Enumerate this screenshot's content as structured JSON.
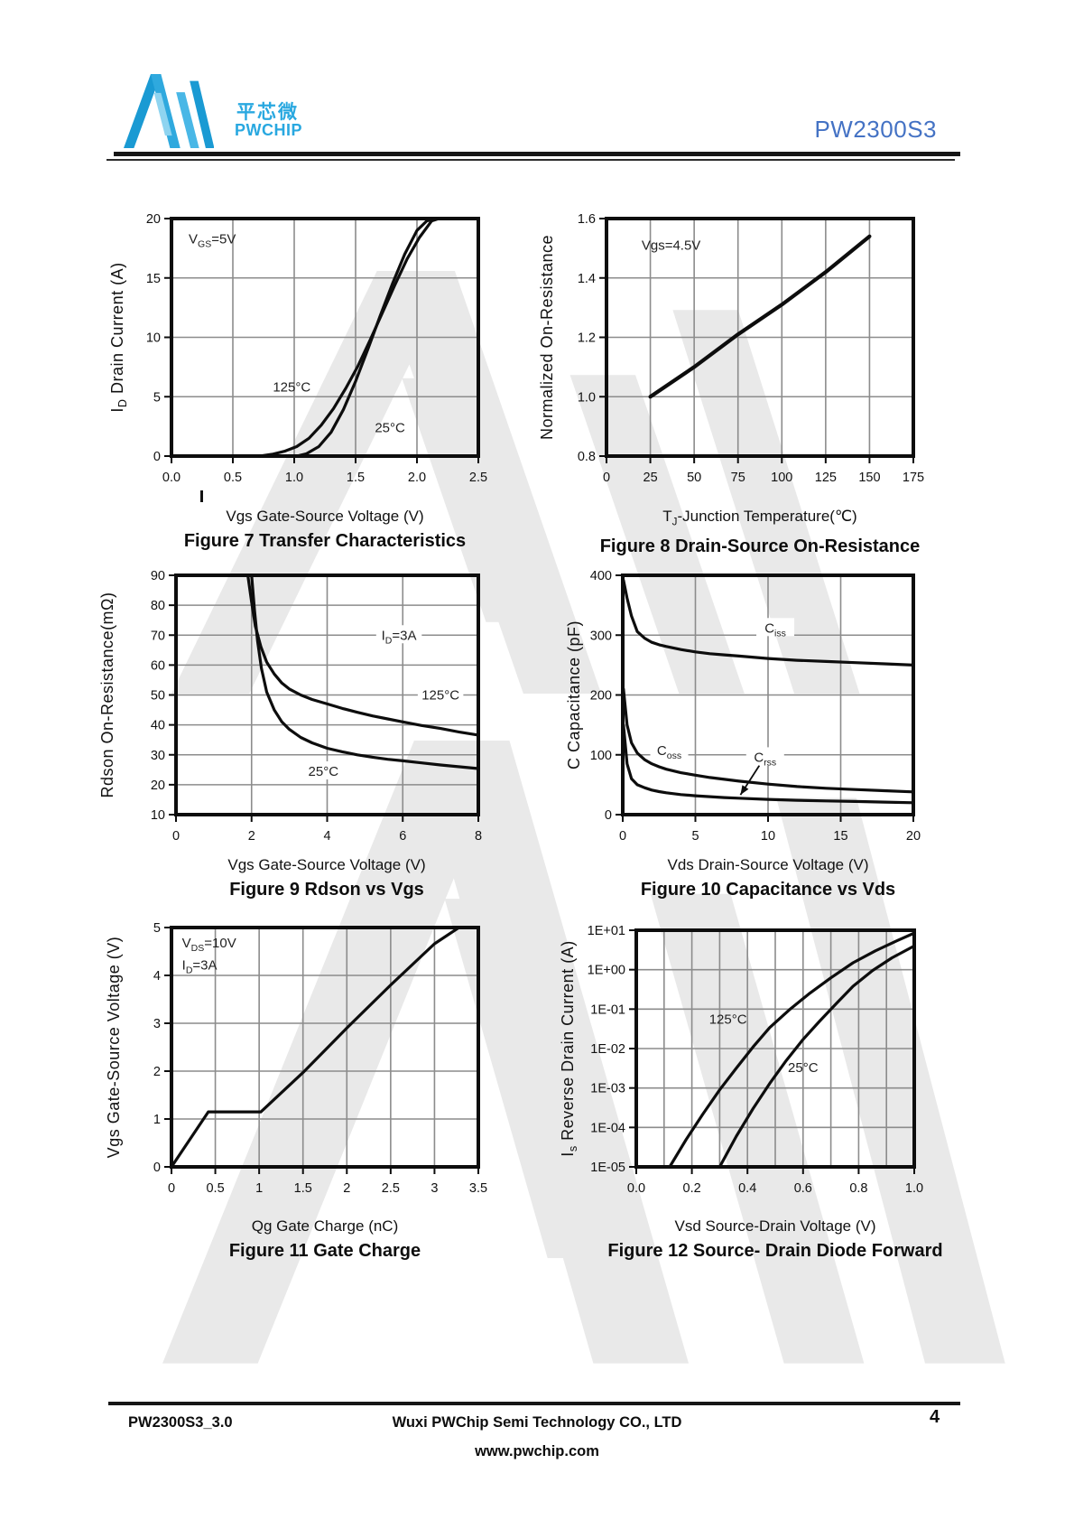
{
  "header": {
    "logo_text_cn": "平芯微",
    "logo_text_en": "PWCHIP",
    "part_number": "PW2300S3",
    "brand_color": "#29a8e0",
    "part_number_color": "#4472c4"
  },
  "footer": {
    "doc_ref": "PW2300S3_3.0",
    "company": "Wuxi PWChip Semi Technology CO., LTD",
    "website": "www.pwchip.com",
    "page_number": "4"
  },
  "chart_data": [
    {
      "id": "figure-7",
      "type": "line",
      "title": "Figure 7 Transfer Characteristics",
      "xlabel": "Vgs Gate-Source Voltage (V)",
      "ylabel": "I_{D} Drain Current (A)",
      "xlim": [
        0,
        2.5
      ],
      "ylim": [
        0,
        20
      ],
      "yscale": "linear",
      "grid": true,
      "xticks": [
        0,
        0.5,
        1,
        1.5,
        2,
        2.5
      ],
      "xtick_labels": [
        "0.0",
        "0.5",
        "1.0",
        "1.5",
        "2.0",
        "2.5"
      ],
      "yticks": [
        0,
        5,
        10,
        15,
        20
      ],
      "xgrid": [
        0.5,
        1,
        1.5,
        2
      ],
      "ygrid": [
        5,
        10,
        15
      ],
      "annotations": [
        {
          "text": "V_{GS}=5V",
          "x": 0.14,
          "y": 18.3,
          "anchor": "start"
        },
        {
          "text": "125°C",
          "x": 0.98,
          "y": 5.8
        },
        {
          "text": "25°C",
          "x": 1.78,
          "y": 2.4
        }
      ],
      "series": [
        {
          "name": "125°C",
          "x": [
            0.72,
            0.82,
            0.92,
            1.02,
            1.12,
            1.22,
            1.32,
            1.42,
            1.52,
            1.62,
            1.72,
            1.82,
            1.92,
            2.02,
            2.12,
            2.18
          ],
          "y": [
            0,
            0.15,
            0.4,
            0.8,
            1.5,
            2.6,
            4,
            5.7,
            7.6,
            9.8,
            12.1,
            14.4,
            16.6,
            18.4,
            19.8,
            20
          ]
        },
        {
          "name": "25°C",
          "x": [
            1.02,
            1.1,
            1.2,
            1.3,
            1.4,
            1.5,
            1.6,
            1.7,
            1.8,
            1.9,
            2,
            2.08,
            2.15
          ],
          "y": [
            0,
            0.2,
            0.8,
            2,
            3.9,
            6.3,
            9,
            11.8,
            14.5,
            17,
            19,
            19.8,
            20
          ]
        }
      ]
    },
    {
      "id": "figure-8",
      "type": "line",
      "title": "Figure 8 Drain-Source On-Resistance",
      "xlabel": "T_{J}-Junction Temperature(℃)",
      "ylabel": "Normalized On-Resistance",
      "xlim": [
        0,
        175
      ],
      "ylim": [
        0.8,
        1.6
      ],
      "yscale": "linear",
      "grid": true,
      "xticks": [
        0,
        25,
        50,
        75,
        100,
        125,
        150,
        175
      ],
      "yticks": [
        0.8,
        1,
        1.2,
        1.4,
        1.6
      ],
      "ytick_labels": [
        "0.8",
        "1.0",
        "1.2",
        "1.4",
        "1.6"
      ],
      "xgrid": [
        25,
        50,
        75,
        100,
        125,
        150
      ],
      "ygrid": [
        1,
        1.2,
        1.4
      ],
      "annotations": [
        {
          "text": "Vgs=4.5V",
          "x": 20,
          "y": 1.51,
          "anchor": "start"
        }
      ],
      "series": [
        {
          "name": "Normalized Rdson",
          "width": 4.2,
          "x": [
            25,
            50,
            75,
            100,
            125,
            150
          ],
          "y": [
            1.0,
            1.1,
            1.21,
            1.31,
            1.42,
            1.54
          ]
        }
      ]
    },
    {
      "id": "figure-9",
      "type": "line",
      "title": "Figure 9 Rdson vs Vgs",
      "xlabel": "Vgs Gate-Source Voltage (V)",
      "ylabel": "Rdson On-Resistance(mΩ)",
      "xlim": [
        0,
        8
      ],
      "ylim": [
        10,
        90
      ],
      "yscale": "linear",
      "grid": true,
      "xticks": [
        0,
        2,
        4,
        6,
        8
      ],
      "yticks": [
        10,
        20,
        30,
        40,
        50,
        60,
        70,
        80,
        90
      ],
      "xgrid": [
        2,
        4,
        6
      ],
      "ygrid": [
        20,
        30,
        40,
        50,
        60,
        70,
        80
      ],
      "annotations": [
        {
          "text": "I_{D}=3A",
          "x": 5.9,
          "y": 70,
          "bg": true
        },
        {
          "text": "125°C",
          "x": 7,
          "y": 50,
          "bg": true
        },
        {
          "text": "25°C",
          "x": 3.9,
          "y": 24.5,
          "bg": true
        }
      ],
      "series": [
        {
          "name": "125°C",
          "x": [
            1.9,
            2,
            2.1,
            2.25,
            2.4,
            2.6,
            2.8,
            3,
            3.3,
            3.6,
            4,
            4.4,
            4.8,
            5.2,
            5.6,
            6,
            6.5,
            7,
            7.5,
            8
          ],
          "y": [
            90,
            81,
            73,
            66,
            61,
            57,
            54,
            52,
            50,
            48.5,
            47,
            45.5,
            44.2,
            43,
            42,
            41,
            39.8,
            38.8,
            37.6,
            36.6
          ]
        },
        {
          "name": "25°C",
          "x": [
            2,
            2.08,
            2.16,
            2.26,
            2.4,
            2.6,
            2.8,
            3,
            3.3,
            3.6,
            4,
            4.4,
            4.8,
            5.2,
            5.6,
            6,
            6.5,
            7,
            7.5,
            8
          ],
          "y": [
            90,
            78,
            68,
            59,
            51,
            45,
            41,
            38.5,
            35.8,
            34,
            32.2,
            31,
            30,
            29.2,
            28.5,
            28,
            27.3,
            26.6,
            26,
            25.4
          ]
        }
      ]
    },
    {
      "id": "figure-10",
      "type": "line",
      "title": "Figure 10 Capacitance vs Vds",
      "xlabel": "Vds Drain-Source Voltage (V)",
      "ylabel": "C Capacitance (pF)",
      "xlim": [
        0,
        20
      ],
      "ylim": [
        0,
        400
      ],
      "yscale": "linear",
      "grid": true,
      "xticks": [
        0,
        5,
        10,
        15,
        20
      ],
      "yticks": [
        0,
        100,
        200,
        300,
        400
      ],
      "xgrid": [
        5,
        10,
        15
      ],
      "ygrid": [
        100,
        200,
        300
      ],
      "annotations": [
        {
          "text": "C_{iss}",
          "x": 10.5,
          "y": 312,
          "bg": true
        },
        {
          "text": "C_{oss}",
          "x": 3.2,
          "y": 107,
          "bg": true
        },
        {
          "text": "C_{rss}",
          "x": 9.8,
          "y": 96,
          "bg": true
        }
      ],
      "arrows": [
        {
          "x1": 9.4,
          "y1": 82,
          "x2": 8.1,
          "y2": 33
        }
      ],
      "series": [
        {
          "name": "Ciss",
          "x": [
            0.05,
            0.3,
            0.6,
            1,
            1.5,
            2,
            2.5,
            3,
            4,
            5,
            6,
            7,
            8,
            10,
            12,
            14,
            16,
            18,
            20
          ],
          "y": [
            392,
            362,
            332,
            306,
            295,
            288,
            284,
            281,
            276,
            272,
            269,
            267,
            265,
            261,
            258,
            256,
            254,
            252,
            250
          ]
        },
        {
          "name": "Coss",
          "x": [
            0.05,
            0.3,
            0.6,
            1,
            1.5,
            2,
            2.5,
            3,
            4,
            5,
            6,
            7,
            8,
            10,
            12,
            14,
            16,
            18,
            20
          ],
          "y": [
            210,
            150,
            120,
            103,
            92,
            85,
            80,
            76,
            70,
            66,
            62,
            59,
            56,
            51,
            47,
            44,
            42,
            40,
            38
          ]
        },
        {
          "name": "Crss",
          "x": [
            0.05,
            0.3,
            0.6,
            1,
            1.5,
            2,
            2.5,
            3,
            4,
            5,
            6,
            7,
            8,
            10,
            12,
            14,
            16,
            18,
            20
          ],
          "y": [
            150,
            85,
            60,
            50,
            45,
            41,
            38.5,
            36.5,
            33.5,
            31.5,
            30,
            28.5,
            27.5,
            25.5,
            24,
            23,
            22,
            21,
            20
          ]
        }
      ]
    },
    {
      "id": "figure-11",
      "type": "line",
      "title": "Figure 11 Gate Charge",
      "xlabel": "Qg Gate Charge (nC)",
      "ylabel": "Vgs Gate-Source Voltage (V)",
      "xlim": [
        0,
        3.5
      ],
      "ylim": [
        0,
        5
      ],
      "yscale": "linear",
      "grid": true,
      "xticks": [
        0,
        0.5,
        1,
        1.5,
        2,
        2.5,
        3,
        3.5
      ],
      "xtick_labels": [
        "0",
        "0.5",
        "1",
        "1.5",
        "2",
        "2.5",
        "3",
        "3.5"
      ],
      "yticks": [
        0,
        1,
        2,
        3,
        4,
        5
      ],
      "xgrid": [
        0.5,
        1,
        1.5,
        2,
        2.5,
        3
      ],
      "ygrid": [
        1,
        2,
        3,
        4
      ],
      "annotations": [
        {
          "text": "V_{DS}=10V",
          "x": 0.12,
          "y": 4.68,
          "anchor": "start"
        },
        {
          "text": "I_{D}=3A",
          "x": 0.12,
          "y": 4.22,
          "anchor": "start"
        }
      ],
      "series": [
        {
          "name": "Vgs",
          "x": [
            0,
            0.42,
            1.02,
            1.5,
            2,
            2.5,
            3,
            3.28
          ],
          "y": [
            0,
            1.15,
            1.15,
            1.97,
            2.9,
            3.8,
            4.66,
            5
          ]
        }
      ]
    },
    {
      "id": "figure-12",
      "type": "line",
      "title": "Figure 12 Source- Drain Diode Forward",
      "xlabel": "Vsd Source-Drain Voltage (V)",
      "ylabel": "I_{s} Reverse Drain Current (A)",
      "xlim": [
        0,
        1
      ],
      "ylim": [
        1e-05,
        10
      ],
      "yscale": "log",
      "grid": true,
      "xticks": [
        0,
        0.2,
        0.4,
        0.6,
        0.8,
        1
      ],
      "xtick_labels": [
        "0.0",
        "0.2",
        "0.4",
        "0.6",
        "0.8",
        "1.0"
      ],
      "yticks": [
        1e-05,
        0.0001,
        0.001,
        0.01,
        0.1,
        1,
        10
      ],
      "ytick_labels": [
        "1E-05",
        "1E-04",
        "1E-03",
        "1E-02",
        "1E-01",
        "1E+00",
        "1E+01"
      ],
      "xgrid": [
        0.1,
        0.2,
        0.3,
        0.4,
        0.5,
        0.6,
        0.7,
        0.8,
        0.9
      ],
      "ygrid": [
        0.0001,
        0.001,
        0.01,
        0.1,
        1
      ],
      "annotations": [
        {
          "text": "125°C",
          "x": 0.33,
          "y": 0.055
        },
        {
          "text": "25°C",
          "x": 0.6,
          "y": 0.0033
        }
      ],
      "series": [
        {
          "name": "125°C",
          "x": [
            0.12,
            0.18,
            0.24,
            0.3,
            0.36,
            0.42,
            0.48,
            0.55,
            0.62,
            0.7,
            0.78,
            0.86,
            0.94,
            1
          ],
          "y": [
            1e-05,
            5e-05,
            0.00022,
            0.0009,
            0.0032,
            0.011,
            0.034,
            0.095,
            0.24,
            0.62,
            1.5,
            3,
            5.5,
            8.5
          ]
        },
        {
          "name": "25°C",
          "x": [
            0.3,
            0.36,
            0.42,
            0.48,
            0.54,
            0.6,
            0.66,
            0.72,
            0.78,
            0.85,
            0.92,
            1
          ],
          "y": [
            1e-05,
            6e-05,
            0.0003,
            0.0013,
            0.005,
            0.017,
            0.05,
            0.14,
            0.38,
            0.95,
            2,
            4
          ]
        }
      ]
    }
  ]
}
